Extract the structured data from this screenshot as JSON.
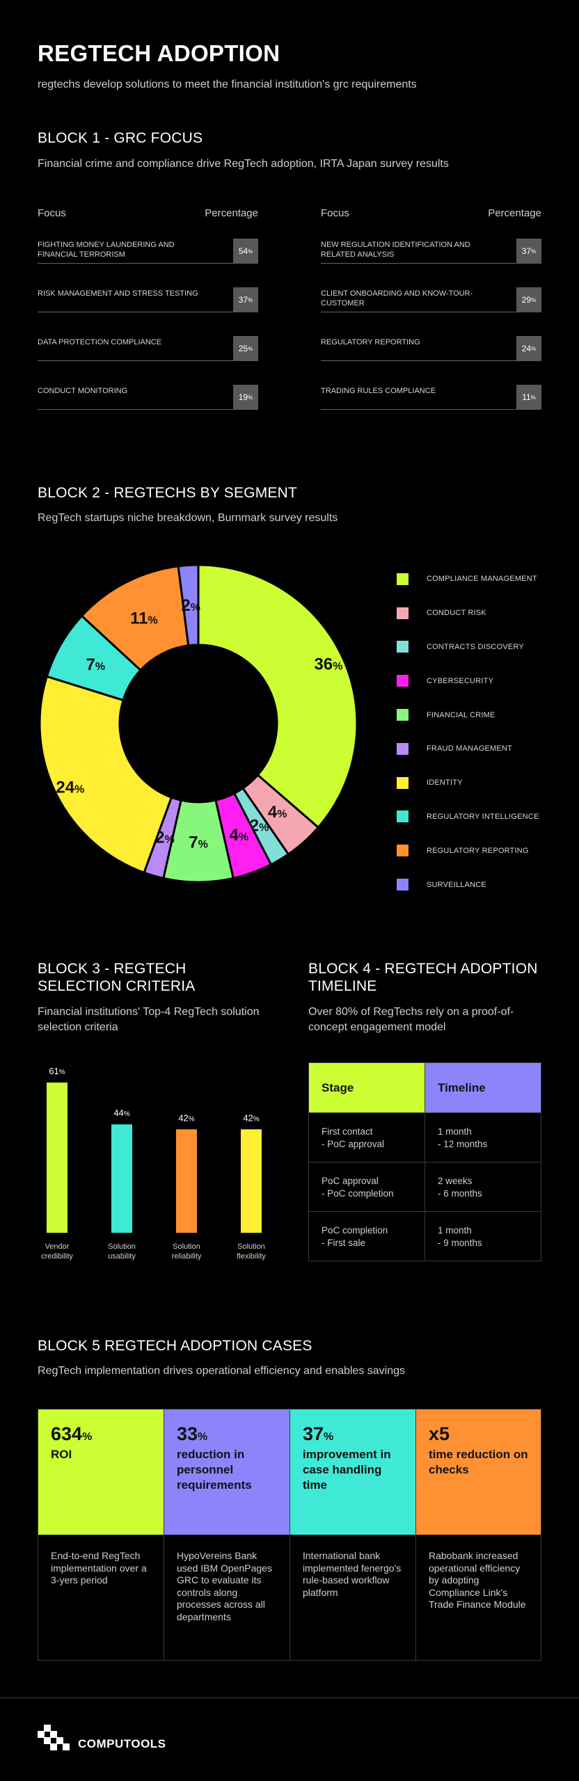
{
  "header": {
    "title": "REGTECH ADOPTION",
    "subtitle": "regtechs develop solutions to meet the financial institution's grc requirements"
  },
  "block1": {
    "title": "BLOCK 1 - GRC FOCUS",
    "subtitle": "Financial crime and compliance drive RegTech adoption, IRTA Japan survey results",
    "col_focus": "Focus",
    "col_percentage": "Percentage",
    "left": [
      {
        "label": "FIGHTING MONEY LAUNDERING AND FINANCIAL TERRORISM",
        "value": "54"
      },
      {
        "label": "RISK MANAGEMENT AND STRESS TESTING",
        "value": "37"
      },
      {
        "label": "DATA PROTECTION COMPLIANCE",
        "value": "25"
      },
      {
        "label": "CONDUCT MONITORING",
        "value": "19"
      }
    ],
    "right": [
      {
        "label": "NEW REGULATION IDENTIFICATION AND RELATED ANALYSIS",
        "value": "37"
      },
      {
        "label": "CLIENT ONBOARDING AND KNOW-TOUR-CUSTOMER",
        "value": "29"
      },
      {
        "label": "REGULATORY REPORTING",
        "value": "24"
      },
      {
        "label": "TRADING RULES COMPLIANCE",
        "value": "11"
      }
    ],
    "percent_sign": "%"
  },
  "block2": {
    "title": "BLOCK 2 - REGTECHS BY SEGMENT",
    "subtitle": "RegTech startups niche breakdown, Burnmark survey results"
  },
  "chart_data": [
    {
      "type": "pie",
      "donut": true,
      "categories": [
        "COMPLIANCE MANAGEMENT",
        "CONDUCT RISK",
        "CONTRACTS DISCOVERY",
        "CYBERSECURITY",
        "FINANCIAL CRIME",
        "FRAUD MANAGEMENT",
        "IDENTITY",
        "REGULATORY INTELLIGENCE",
        "REGULATORY REPORTING",
        "SURVEILLANCE"
      ],
      "values": [
        36,
        4,
        2,
        4,
        7,
        2,
        24,
        7,
        11,
        2
      ],
      "colors": [
        "#CCFF33",
        "#F4A7B0",
        "#82DFD8",
        "#FF1FF0",
        "#86F77C",
        "#B88BF5",
        "#FFEE33",
        "#3FE9D6",
        "#FF9133",
        "#8B84FA"
      ],
      "legend": "right"
    },
    {
      "type": "bar",
      "categories": [
        "Vendor credibility",
        "Solution usability",
        "Solution reliability",
        "Solution flexibility"
      ],
      "values": [
        61,
        44,
        42,
        42
      ],
      "colors": [
        "#CCFF33",
        "#3FE9D6",
        "#FF9133",
        "#FFEE33"
      ],
      "ylim": [
        0,
        61
      ]
    }
  ],
  "block3": {
    "title": "BLOCK 3 - REGTECH SELECTION CRITERIA",
    "subtitle": "Financial institutions' Top-4 RegTech solution selection criteria"
  },
  "block4": {
    "title": "BLOCK 4 - REGTECH ADOPTION TIMELINE",
    "subtitle": "Over 80% of RegTechs rely on a proof-of-concept engagement model",
    "head_stage": "Stage",
    "head_timeline": "Timeline",
    "head_stage_color": "#CCFF33",
    "head_timeline_color": "#8B84FA",
    "rows": [
      {
        "stage": "First contact\n- PoC approval",
        "timeline": "1 month\n- 12 months"
      },
      {
        "stage": "PoC approval\n- PoC completion",
        "timeline": "2 weeks\n- 6 months"
      },
      {
        "stage": "PoC completion\n- First sale",
        "timeline": "1 month\n- 9 months"
      }
    ]
  },
  "block5": {
    "title": "BLOCK 5 REGTECH ADOPTION CASES",
    "subtitle": "RegTech implementation drives operational efficiency and enables savings",
    "cases": [
      {
        "big": "634",
        "unit": "%",
        "desc": "ROI",
        "color": "#CCFF33",
        "text": "End-to-end RegTech implementation over a 3-yers period"
      },
      {
        "big": "33",
        "unit": "%",
        "desc": "reduction in personnel requirements",
        "color": "#8B84FA",
        "text": "HypoVereins Bank used IBM OpenPages GRC to evaluate its controls along processes across all departments"
      },
      {
        "big": "37",
        "unit": "%",
        "desc": "improvement in case handling time",
        "color": "#3FE9D6",
        "text": "International bank implemented fenergo's rule-based workflow platform"
      },
      {
        "big": "x5",
        "unit": "",
        "desc": "time reduction on checks",
        "color": "#FF9133",
        "text": "Rabobank increased operational efficiency by adopting Compliance Link's Trade Finance Module"
      }
    ]
  },
  "footer": {
    "brand": "COMPUTOOLS"
  }
}
